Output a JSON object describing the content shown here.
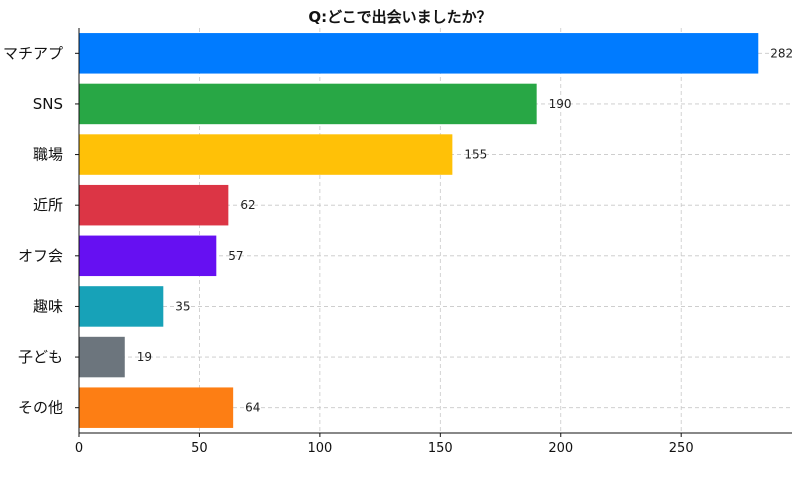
{
  "chart_data": {
    "type": "bar",
    "orientation": "horizontal",
    "title": "Q:どこで出会いましたか？",
    "xlabel": "",
    "ylabel": "",
    "categories": [
      "マチアプ",
      "SNS",
      "職場",
      "近所",
      "オフ会",
      "趣味",
      "子ども",
      "その他"
    ],
    "values": [
      282,
      190,
      155,
      62,
      57,
      35,
      19,
      64
    ],
    "colors": [
      "#007bff",
      "#28a745",
      "#ffc107",
      "#dc3545",
      "#6610f2",
      "#17a2b8",
      "#6c757d",
      "#fd7e14"
    ],
    "xlim": [
      0,
      296
    ],
    "xticks": [
      0,
      50,
      100,
      150,
      200,
      250
    ],
    "grid": true,
    "legend": "none"
  }
}
